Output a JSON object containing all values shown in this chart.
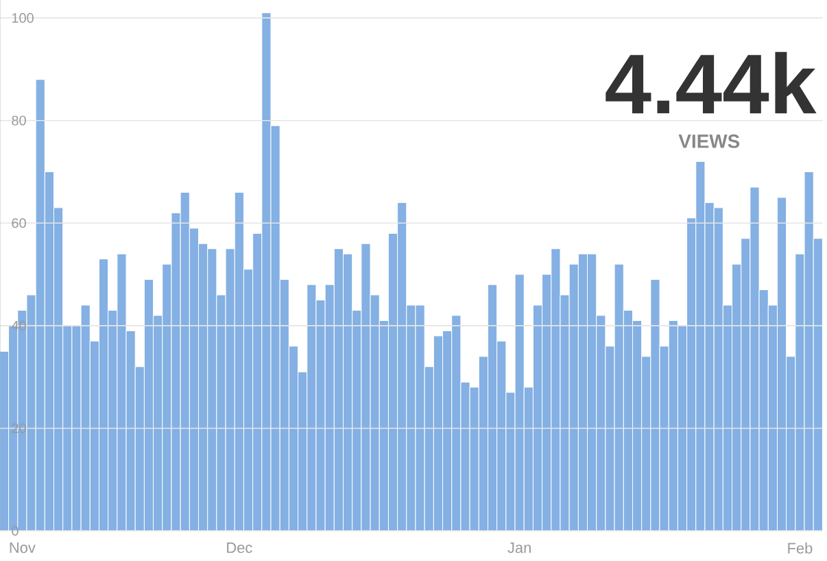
{
  "chart_data": {
    "type": "bar",
    "categories": [
      null,
      null,
      "Nov",
      null,
      null,
      null,
      null,
      null,
      null,
      null,
      null,
      null,
      null,
      null,
      null,
      null,
      null,
      null,
      null,
      null,
      null,
      null,
      null,
      null,
      null,
      null,
      "Dec",
      null,
      null,
      null,
      null,
      null,
      null,
      null,
      null,
      null,
      null,
      null,
      null,
      null,
      null,
      null,
      null,
      null,
      null,
      null,
      null,
      null,
      null,
      null,
      null,
      null,
      null,
      null,
      null,
      null,
      null,
      "Jan",
      null,
      null,
      null,
      null,
      null,
      null,
      null,
      null,
      null,
      null,
      null,
      null,
      null,
      null,
      null,
      null,
      null,
      null,
      null,
      null,
      null,
      null,
      null,
      null,
      null,
      null,
      null,
      null,
      null,
      null,
      "Feb",
      null,
      null
    ],
    "values": [
      35,
      40,
      43,
      46,
      88,
      70,
      63,
      40,
      40,
      44,
      37,
      53,
      43,
      54,
      39,
      32,
      49,
      42,
      52,
      62,
      66,
      59,
      56,
      55,
      46,
      55,
      66,
      51,
      58,
      101,
      79,
      49,
      36,
      31,
      48,
      45,
      48,
      55,
      54,
      43,
      56,
      46,
      41,
      58,
      64,
      44,
      44,
      32,
      38,
      39,
      42,
      29,
      28,
      34,
      48,
      37,
      27,
      50,
      28,
      44,
      50,
      55,
      46,
      52,
      54,
      54,
      42,
      36,
      52,
      43,
      41,
      34,
      49,
      36,
      41,
      40,
      61,
      72,
      64,
      63,
      44,
      52,
      57,
      67,
      47,
      44,
      65,
      34,
      54,
      70,
      57
    ],
    "color": "#84b0e3",
    "ylim": [
      0,
      103.5
    ],
    "yticks": [
      0,
      20,
      40,
      60,
      80,
      100
    ],
    "grid": "y",
    "annotations": [
      "4.44k",
      "VIEWS"
    ]
  }
}
